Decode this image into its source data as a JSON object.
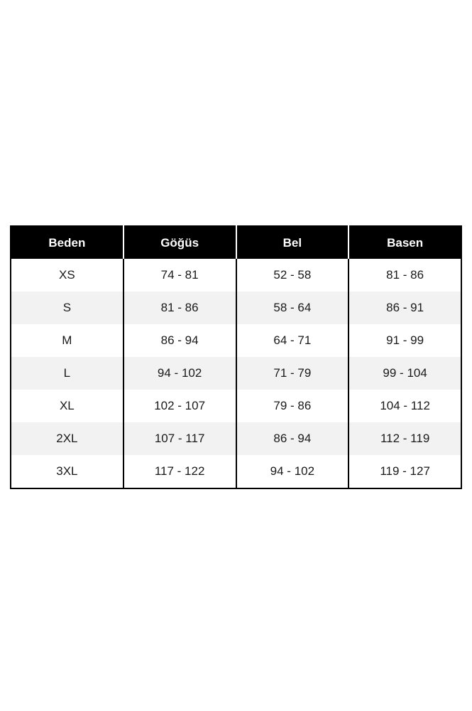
{
  "table": {
    "columns": [
      "Beden",
      "Göğüs",
      "Bel",
      "Basen"
    ],
    "rows": [
      [
        "XS",
        "74 - 81",
        "52 - 58",
        "81 - 86"
      ],
      [
        "S",
        "81 - 86",
        "58 - 64",
        "86 - 91"
      ],
      [
        "M",
        "86 - 94",
        "64 - 71",
        "91 - 99"
      ],
      [
        "L",
        "94 - 102",
        "71 - 79",
        "99 - 104"
      ],
      [
        "XL",
        "102 - 107",
        "79 - 86",
        "104 - 112"
      ],
      [
        "2XL",
        "107 - 117",
        "86 - 94",
        "112 - 119"
      ],
      [
        "3XL",
        "117 - 122",
        "94 - 102",
        "119 - 127"
      ]
    ],
    "colors": {
      "header_bg": "#000000",
      "header_text": "#ffffff",
      "row_bg": "#ffffff",
      "row_alt_bg": "#f2f2f2",
      "border": "#000000"
    }
  },
  "chart_data": {
    "type": "table",
    "title": "",
    "columns": [
      "Beden",
      "Göğüs",
      "Bel",
      "Basen"
    ],
    "rows": [
      {
        "Beden": "XS",
        "Göğüs": "74 - 81",
        "Bel": "52 - 58",
        "Basen": "81 - 86"
      },
      {
        "Beden": "S",
        "Göğüs": "81 - 86",
        "Bel": "58 - 64",
        "Basen": "86 - 91"
      },
      {
        "Beden": "M",
        "Göğüs": "86 - 94",
        "Bel": "64 - 71",
        "Basen": "91 - 99"
      },
      {
        "Beden": "L",
        "Göğüs": "94 - 102",
        "Bel": "71 - 79",
        "Basen": "99 - 104"
      },
      {
        "Beden": "XL",
        "Göğüs": "102 - 107",
        "Bel": "79 - 86",
        "Basen": "104 - 112"
      },
      {
        "Beden": "2XL",
        "Göğüs": "107 - 117",
        "Bel": "86 - 94",
        "Basen": "112 - 119"
      },
      {
        "Beden": "3XL",
        "Göğüs": "117 - 122",
        "Bel": "94 - 102",
        "Basen": "119 - 127"
      }
    ],
    "layout_hints": {
      "header_style": "black background, white bold centered text",
      "body_style": "alternating white and #f2f2f2 rows, centered text, black vertical grid lines, no horizontal lines between body rows",
      "column_widths": "4 equal columns"
    }
  }
}
